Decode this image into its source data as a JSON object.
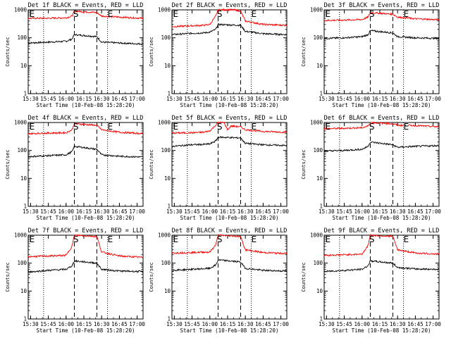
{
  "chart_data": [
    {
      "type": "line",
      "title": "Det 1f BLACK = Events, RED = LLD",
      "xlabel": "Start Time (10-Feb-08 15:28:20)",
      "ylabel": "Counts/sec",
      "yscale": "log",
      "ylim": [
        1,
        1000
      ],
      "yticks": [
        "1",
        "10",
        "100",
        "1000"
      ],
      "xticks": [
        "15:30",
        "15:45",
        "16:00",
        "16:15",
        "16:30",
        "16:45",
        "17:00"
      ],
      "xlim": [
        "15:28",
        "17:05"
      ],
      "dotted_lines": [
        "15:41",
        "16:35"
      ],
      "dashed_lines": [
        "16:07",
        "16:26"
      ],
      "markers": [
        {
          "text": "E",
          "x": "15:29"
        },
        {
          "text": "S",
          "x": "16:06"
        },
        {
          "text": "E",
          "x": "16:35"
        }
      ],
      "series": [
        {
          "name": "BLACK = Events",
          "color": "#000000",
          "x": [
            "15:28",
            "15:45",
            "16:00",
            "16:05",
            "16:07",
            "16:26",
            "16:30",
            "16:45",
            "17:05"
          ],
          "values": [
            65,
            70,
            75,
            90,
            130,
            110,
            70,
            65,
            60
          ]
        },
        {
          "name": "RED = LLD",
          "color": "#ff0000",
          "x": [
            "15:28",
            "15:45",
            "16:00",
            "16:05",
            "16:07",
            "16:26",
            "16:30",
            "16:45",
            "17:05"
          ],
          "values": [
            500,
            500,
            520,
            600,
            900,
            800,
            600,
            550,
            500
          ]
        }
      ]
    },
    {
      "type": "line",
      "title": "Det 2f BLACK = Events, RED = LLD",
      "xlabel": "Start Time (10-Feb-08 15:28:20)",
      "ylabel": "Counts/sec",
      "yscale": "log",
      "ylim": [
        1,
        1000
      ],
      "yticks": [
        "1",
        "10",
        "100",
        "1000"
      ],
      "xticks": [
        "15:30",
        "15:45",
        "16:00",
        "16:15",
        "16:30",
        "16:45",
        "17:00"
      ],
      "xlim": [
        "15:28",
        "17:05"
      ],
      "dotted_lines": [
        "15:41",
        "16:35"
      ],
      "dashed_lines": [
        "16:07",
        "16:26"
      ],
      "markers": [
        {
          "text": "E",
          "x": "15:29"
        },
        {
          "text": "S",
          "x": "16:06"
        },
        {
          "text": "E",
          "x": "16:35"
        }
      ],
      "series": [
        {
          "name": "BLACK = Events",
          "color": "#000000",
          "x": [
            "15:28",
            "15:45",
            "15:55",
            "16:00",
            "16:05",
            "16:07",
            "16:26",
            "16:30",
            "16:45",
            "17:05"
          ],
          "values": [
            130,
            145,
            150,
            160,
            200,
            300,
            280,
            170,
            140,
            130
          ]
        },
        {
          "name": "RED = LLD",
          "color": "#ff0000",
          "x": [
            "15:28",
            "15:45",
            "15:55",
            "16:00",
            "16:05",
            "16:07",
            "16:20",
            "16:26",
            "16:30",
            "16:45",
            "17:05"
          ],
          "values": [
            250,
            270,
            280,
            300,
            600,
            1000,
            1000,
            900,
            400,
            300,
            280
          ]
        }
      ]
    },
    {
      "type": "line",
      "title": "Det 3f BLACK = Events, RED = LLD",
      "xlabel": "Start Time (10-Feb-08 15:28:20)",
      "ylabel": "Counts/sec",
      "yscale": "log",
      "ylim": [
        1,
        1000
      ],
      "yticks": [
        "1",
        "10",
        "100",
        "1000"
      ],
      "xticks": [
        "15:30",
        "15:45",
        "16:00",
        "16:15",
        "16:30",
        "16:45",
        "17:00"
      ],
      "xlim": [
        "15:28",
        "17:05"
      ],
      "dotted_lines": [
        "15:41",
        "16:35"
      ],
      "dashed_lines": [
        "16:07",
        "16:26"
      ],
      "markers": [
        {
          "text": "E",
          "x": "15:29"
        },
        {
          "text": "S",
          "x": "16:06"
        },
        {
          "text": "E",
          "x": "16:35"
        }
      ],
      "series": [
        {
          "name": "BLACK = Events",
          "color": "#000000",
          "x": [
            "15:28",
            "15:45",
            "16:00",
            "16:05",
            "16:07",
            "16:26",
            "16:30",
            "16:45",
            "17:05"
          ],
          "values": [
            95,
            100,
            110,
            130,
            180,
            150,
            110,
            100,
            95
          ]
        },
        {
          "name": "RED = LLD",
          "color": "#ff0000",
          "x": [
            "15:28",
            "15:45",
            "16:00",
            "16:05",
            "16:07",
            "16:26",
            "16:30",
            "16:45",
            "17:05"
          ],
          "values": [
            420,
            430,
            450,
            550,
            800,
            700,
            550,
            480,
            440
          ]
        }
      ]
    },
    {
      "type": "line",
      "title": "Det 4f BLACK = Events, RED = LLD",
      "xlabel": "Start Time (10-Feb-08 15:28:20)",
      "ylabel": "Counts/sec",
      "yscale": "log",
      "ylim": [
        1,
        1000
      ],
      "yticks": [
        "1",
        "10",
        "100",
        "1000"
      ],
      "xticks": [
        "15:30",
        "15:45",
        "16:00",
        "16:15",
        "16:30",
        "16:45",
        "17:00"
      ],
      "xlim": [
        "15:28",
        "17:05"
      ],
      "dotted_lines": [
        "15:41",
        "16:35"
      ],
      "dashed_lines": [
        "16:07",
        "16:26"
      ],
      "markers": [
        {
          "text": "E",
          "x": "15:29"
        },
        {
          "text": "S",
          "x": "16:06"
        },
        {
          "text": "E",
          "x": "16:35"
        }
      ],
      "series": [
        {
          "name": "BLACK = Events",
          "color": "#000000",
          "x": [
            "15:28",
            "15:45",
            "16:00",
            "16:05",
            "16:07",
            "16:26",
            "16:30",
            "16:45",
            "17:05"
          ],
          "values": [
            60,
            65,
            70,
            90,
            140,
            110,
            70,
            62,
            58
          ]
        },
        {
          "name": "RED = LLD",
          "color": "#ff0000",
          "x": [
            "15:28",
            "15:45",
            "16:00",
            "16:05",
            "16:07",
            "16:26",
            "16:30",
            "16:45",
            "17:05"
          ],
          "values": [
            400,
            420,
            430,
            550,
            900,
            800,
            550,
            450,
            400
          ]
        }
      ]
    },
    {
      "type": "line",
      "title": "Det 5f BLACK = Events, RED = LLD",
      "xlabel": "Start Time (10-Feb-08 15:28:20)",
      "ylabel": "Counts/sec",
      "yscale": "log",
      "ylim": [
        1,
        1000
      ],
      "yticks": [
        "1",
        "10",
        "100",
        "1000"
      ],
      "xticks": [
        "15:30",
        "15:45",
        "16:00",
        "16:15",
        "16:30",
        "16:45",
        "17:00"
      ],
      "xlim": [
        "15:28",
        "17:05"
      ],
      "dotted_lines": [
        "15:41",
        "16:35"
      ],
      "dashed_lines": [
        "16:07",
        "16:26"
      ],
      "markers": [
        {
          "text": "E",
          "x": "15:29"
        },
        {
          "text": "S",
          "x": "16:06"
        },
        {
          "text": "E",
          "x": "16:35"
        }
      ],
      "series": [
        {
          "name": "BLACK = Events",
          "color": "#000000",
          "x": [
            "15:28",
            "15:45",
            "15:55",
            "16:00",
            "16:05",
            "16:07",
            "16:26",
            "16:30",
            "16:45",
            "17:05"
          ],
          "values": [
            140,
            160,
            165,
            170,
            220,
            300,
            280,
            180,
            160,
            150
          ]
        },
        {
          "name": "RED = LLD",
          "color": "#ff0000",
          "x": [
            "15:28",
            "15:45",
            "15:55",
            "16:00",
            "16:05",
            "16:07",
            "16:12",
            "16:15",
            "16:18",
            "16:26",
            "16:30",
            "16:45",
            "17:05"
          ],
          "values": [
            420,
            430,
            450,
            500,
            800,
            1000,
            1000,
            550,
            750,
            700,
            550,
            480,
            450
          ]
        }
      ]
    },
    {
      "type": "line",
      "title": "Det 6f BLACK = Events, RED = LLD",
      "xlabel": "Start Time (10-Feb-08 15:28:20)",
      "ylabel": "Counts/sec",
      "yscale": "log",
      "ylim": [
        1,
        1000
      ],
      "yticks": [
        "1",
        "10",
        "100",
        "1000"
      ],
      "xticks": [
        "15:30",
        "15:45",
        "16:00",
        "16:15",
        "16:30",
        "16:45",
        "17:00"
      ],
      "xlim": [
        "15:28",
        "17:05"
      ],
      "dotted_lines": [
        "15:41",
        "16:35"
      ],
      "dashed_lines": [
        "16:07",
        "16:26"
      ],
      "markers": [
        {
          "text": "E",
          "x": "15:29"
        },
        {
          "text": "S",
          "x": "16:06"
        },
        {
          "text": "E",
          "x": "16:35"
        }
      ],
      "series": [
        {
          "name": "BLACK = Events",
          "color": "#000000",
          "x": [
            "15:28",
            "15:45",
            "16:00",
            "16:05",
            "16:07",
            "16:26",
            "16:30",
            "16:45",
            "17:05"
          ],
          "values": [
            95,
            100,
            110,
            140,
            200,
            160,
            130,
            140,
            150
          ]
        },
        {
          "name": "RED = LLD",
          "color": "#ff0000",
          "x": [
            "15:28",
            "15:45",
            "16:00",
            "16:05",
            "16:07",
            "16:26",
            "16:30",
            "16:45",
            "17:05"
          ],
          "values": [
            600,
            620,
            650,
            750,
            1000,
            900,
            800,
            780,
            700
          ]
        }
      ]
    },
    {
      "type": "line",
      "title": "Det 7f BLACK = Events, RED = LLD",
      "xlabel": "Start Time (10-Feb-08 15:28:20)",
      "ylabel": "Counts/sec",
      "yscale": "log",
      "ylim": [
        1,
        1000
      ],
      "yticks": [
        "1",
        "10",
        "100",
        "1000"
      ],
      "xticks": [
        "15:30",
        "15:45",
        "16:00",
        "16:15",
        "16:30",
        "16:45",
        "17:00"
      ],
      "xlim": [
        "15:28",
        "17:05"
      ],
      "dotted_lines": [
        "15:41",
        "16:35"
      ],
      "dashed_lines": [
        "16:07",
        "16:26"
      ],
      "markers": [
        {
          "text": "E",
          "x": "15:29"
        },
        {
          "text": "S",
          "x": "16:06"
        },
        {
          "text": "E",
          "x": "16:35"
        }
      ],
      "series": [
        {
          "name": "BLACK = Events",
          "color": "#000000",
          "x": [
            "15:28",
            "15:45",
            "16:00",
            "16:05",
            "16:07",
            "16:26",
            "16:30",
            "16:45",
            "17:05"
          ],
          "values": [
            48,
            55,
            60,
            80,
            120,
            100,
            60,
            52,
            50
          ]
        },
        {
          "name": "RED = LLD",
          "color": "#ff0000",
          "x": [
            "15:28",
            "15:45",
            "16:00",
            "16:05",
            "16:07",
            "16:26",
            "16:30",
            "16:45",
            "17:05"
          ],
          "values": [
            170,
            180,
            190,
            400,
            1000,
            900,
            250,
            180,
            160
          ]
        }
      ]
    },
    {
      "type": "line",
      "title": "Det 8f BLACK = Events, RED = LLD",
      "xlabel": "Start Time (10-Feb-08 15:28:20)",
      "ylabel": "Counts/sec",
      "yscale": "log",
      "ylim": [
        1,
        1000
      ],
      "yticks": [
        "1",
        "10",
        "100",
        "1000"
      ],
      "xticks": [
        "15:30",
        "15:45",
        "16:00",
        "16:15",
        "16:30",
        "16:45",
        "17:00"
      ],
      "xlim": [
        "15:28",
        "17:05"
      ],
      "dotted_lines": [
        "15:41",
        "16:35"
      ],
      "dashed_lines": [
        "16:07",
        "16:26"
      ],
      "markers": [
        {
          "text": "E",
          "x": "15:29"
        },
        {
          "text": "S",
          "x": "16:06"
        },
        {
          "text": "E",
          "x": "16:35"
        }
      ],
      "series": [
        {
          "name": "BLACK = Events",
          "color": "#000000",
          "x": [
            "15:28",
            "15:45",
            "16:00",
            "16:05",
            "16:07",
            "16:26",
            "16:30",
            "16:45",
            "17:05"
          ],
          "values": [
            55,
            60,
            65,
            85,
            130,
            110,
            65,
            55,
            52
          ]
        },
        {
          "name": "RED = LLD",
          "color": "#ff0000",
          "x": [
            "15:28",
            "15:45",
            "16:00",
            "16:05",
            "16:07",
            "16:26",
            "16:30",
            "16:45",
            "17:05"
          ],
          "values": [
            230,
            240,
            250,
            450,
            1000,
            900,
            300,
            240,
            220
          ]
        }
      ]
    },
    {
      "type": "line",
      "title": "Det 9f BLACK = Events, RED = LLD",
      "xlabel": "Start Time (10-Feb-08 15:28:20)",
      "ylabel": "Counts/sec",
      "yscale": "log",
      "ylim": [
        1,
        1000
      ],
      "yticks": [
        "1",
        "10",
        "100",
        "1000"
      ],
      "xticks": [
        "15:30",
        "15:45",
        "16:00",
        "16:15",
        "16:30",
        "16:45",
        "17:00"
      ],
      "xlim": [
        "15:28",
        "17:05"
      ],
      "dotted_lines": [
        "15:41",
        "16:35"
      ],
      "dashed_lines": [
        "16:07",
        "16:26"
      ],
      "markers": [
        {
          "text": "E",
          "x": "15:29"
        },
        {
          "text": "S",
          "x": "16:06"
        },
        {
          "text": "E",
          "x": "16:35"
        }
      ],
      "series": [
        {
          "name": "BLACK = Events",
          "color": "#000000",
          "x": [
            "15:28",
            "15:45",
            "16:00",
            "16:05",
            "16:07",
            "16:26",
            "16:30",
            "16:45",
            "17:05"
          ],
          "values": [
            50,
            55,
            60,
            80,
            120,
            100,
            70,
            62,
            60
          ]
        },
        {
          "name": "RED = LLD",
          "color": "#ff0000",
          "x": [
            "15:28",
            "15:45",
            "16:00",
            "16:05",
            "16:07",
            "16:26",
            "16:30",
            "16:45",
            "17:05"
          ],
          "values": [
            190,
            200,
            210,
            420,
            1000,
            900,
            300,
            230,
            210
          ]
        }
      ]
    }
  ]
}
